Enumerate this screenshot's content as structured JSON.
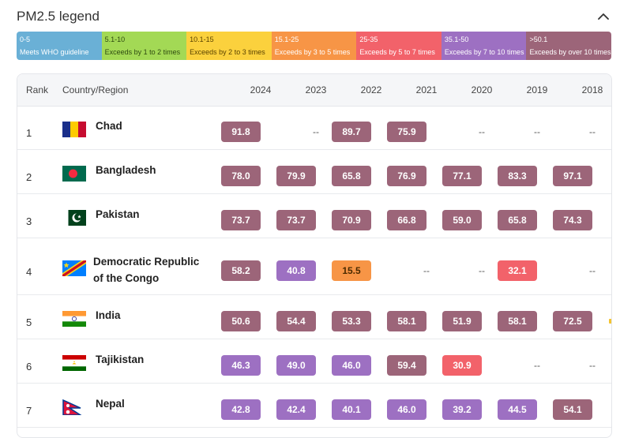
{
  "header": {
    "title": "PM2.5 legend",
    "collapse_icon": "chevron-up-icon"
  },
  "legend": [
    {
      "range": "0-5",
      "desc": "Meets WHO guideline",
      "bg": "#6ab0d6",
      "fg": "#ffffff"
    },
    {
      "range": "5.1-10",
      "desc": "Exceeds by 1 to 2 times",
      "bg": "#a3d955",
      "fg": "#2e4a10"
    },
    {
      "range": "10.1-15",
      "desc": "Exceeds by 2 to 3 times",
      "bg": "#fbd13d",
      "fg": "#5a4300"
    },
    {
      "range": "15.1-25",
      "desc": "Exceeds by 3 to 5 times",
      "bg": "#f79546",
      "fg": "#ffffff"
    },
    {
      "range": "25-35",
      "desc": "Exceeds by 5 to 7 times",
      "bg": "#f2626a",
      "fg": "#ffffff"
    },
    {
      "range": "35.1-50",
      "desc": "Exceeds by 7 to 10 times",
      "bg": "#9d70c2",
      "fg": "#ffffff"
    },
    {
      "range": ">50.1",
      "desc": "Exceeds by over 10 times",
      "bg": "#9c6579",
      "fg": "#ffffff"
    }
  ],
  "table": {
    "headers": {
      "rank": "Rank",
      "country": "Country/Region"
    },
    "years": [
      "2024",
      "2023",
      "2022",
      "2021",
      "2020",
      "2019",
      "2018"
    ],
    "empty": "--",
    "rows": [
      {
        "rank": "1",
        "country": "Chad",
        "flag": "chad-flag-icon",
        "values": [
          "91.8",
          "--",
          "89.7",
          "75.9",
          "--",
          "--",
          "--"
        ]
      },
      {
        "rank": "2",
        "country": "Bangladesh",
        "flag": "bangladesh-flag-icon",
        "values": [
          "78.0",
          "79.9",
          "65.8",
          "76.9",
          "77.1",
          "83.3",
          "97.1"
        ]
      },
      {
        "rank": "3",
        "country": "Pakistan",
        "flag": "pakistan-flag-icon",
        "values": [
          "73.7",
          "73.7",
          "70.9",
          "66.8",
          "59.0",
          "65.8",
          "74.3"
        ]
      },
      {
        "rank": "4",
        "country": "Democratic Republic of the Congo",
        "flag": "drc-flag-icon",
        "values": [
          "58.2",
          "40.8",
          "15.5",
          "--",
          "--",
          "32.1",
          "--"
        ]
      },
      {
        "rank": "5",
        "country": "India",
        "flag": "india-flag-icon",
        "values": [
          "50.6",
          "54.4",
          "53.3",
          "58.1",
          "51.9",
          "58.1",
          "72.5"
        ]
      },
      {
        "rank": "6",
        "country": "Tajikistan",
        "flag": "tajikistan-flag-icon",
        "values": [
          "46.3",
          "49.0",
          "46.0",
          "59.4",
          "30.9",
          "--",
          "--"
        ]
      },
      {
        "rank": "7",
        "country": "Nepal",
        "flag": "nepal-flag-icon",
        "values": [
          "42.8",
          "42.4",
          "40.1",
          "46.0",
          "39.2",
          "44.5",
          "54.1"
        ]
      }
    ]
  }
}
